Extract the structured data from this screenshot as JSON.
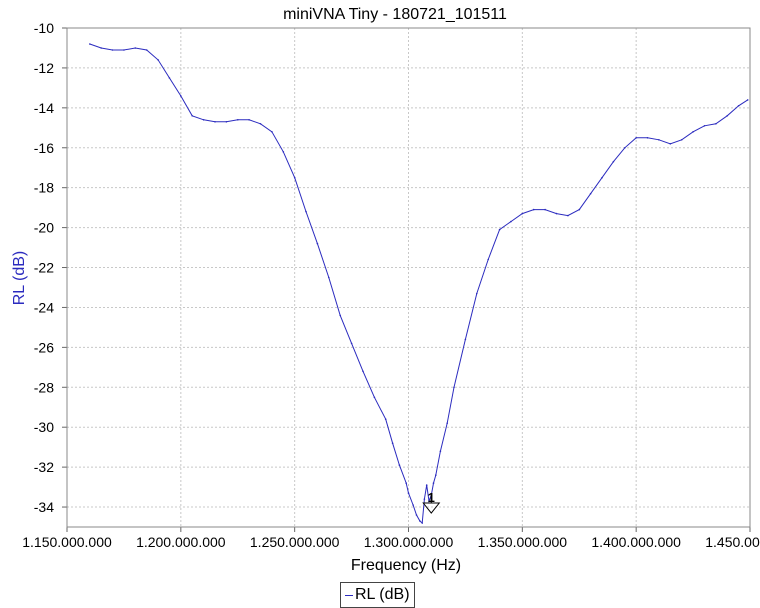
{
  "chart_data": {
    "type": "line",
    "title": "miniVNA Tiny - 180721_101511",
    "xlabel": "Frequency (Hz)",
    "ylabel": "RL (dB)",
    "xlim": [
      1150000000,
      1450000000
    ],
    "ylim": [
      -35,
      -10
    ],
    "x_ticks": [
      1150000000,
      1200000000,
      1250000000,
      1300000000,
      1350000000,
      1400000000,
      1450000000
    ],
    "x_tick_labels": [
      "1.150.000.000",
      "1.200.000.000",
      "1.250.000.000",
      "1.300.000.000",
      "1.350.000.000",
      "1.400.000.000",
      "1.450.000.000"
    ],
    "y_ticks": [
      -10,
      -12,
      -14,
      -16,
      -18,
      -20,
      -22,
      -24,
      -26,
      -28,
      -30,
      -32,
      -34
    ],
    "y_tick_labels": [
      "-10",
      "-12",
      "-14",
      "-16",
      "-18",
      "-20",
      "-22",
      "-24",
      "-26",
      "-28",
      "-30",
      "-32",
      "-34"
    ],
    "grid": true,
    "legend_position": "bottom-center",
    "series": [
      {
        "name": "RL (dB)",
        "color": "#2b2bbf",
        "x": [
          1160000000,
          1165000000,
          1170000000,
          1175000000,
          1180000000,
          1185000000,
          1190000000,
          1195000000,
          1200000000,
          1205000000,
          1210000000,
          1215000000,
          1220000000,
          1225000000,
          1230000000,
          1235000000,
          1240000000,
          1245000000,
          1250000000,
          1255000000,
          1260000000,
          1265000000,
          1270000000,
          1275000000,
          1280000000,
          1285000000,
          1290000000,
          1293000000,
          1296000000,
          1299000000,
          1300000000,
          1302000000,
          1303500000,
          1305000000,
          1306000000,
          1307000000,
          1308000000,
          1309000000,
          1310000000,
          1311000000,
          1312000000,
          1314000000,
          1317000000,
          1320000000,
          1325000000,
          1330000000,
          1335000000,
          1340000000,
          1345000000,
          1350000000,
          1355000000,
          1360000000,
          1365000000,
          1370000000,
          1375000000,
          1380000000,
          1385000000,
          1390000000,
          1395000000,
          1400000000,
          1405000000,
          1410000000,
          1415000000,
          1420000000,
          1425000000,
          1430000000,
          1435000000,
          1440000000,
          1445000000,
          1449000000
        ],
        "values": [
          -10.8,
          -11.0,
          -11.1,
          -11.1,
          -11.0,
          -11.1,
          -11.6,
          -12.5,
          -13.4,
          -14.4,
          -14.6,
          -14.7,
          -14.7,
          -14.6,
          -14.6,
          -14.8,
          -15.2,
          -16.2,
          -17.5,
          -19.2,
          -20.8,
          -22.5,
          -24.4,
          -25.8,
          -27.2,
          -28.5,
          -29.6,
          -30.8,
          -31.9,
          -32.8,
          -33.3,
          -33.9,
          -34.4,
          -34.7,
          -34.8,
          -33.6,
          -32.9,
          -33.7,
          -33.4,
          -32.8,
          -32.4,
          -31.2,
          -29.8,
          -28.0,
          -25.6,
          -23.3,
          -21.6,
          -20.1,
          -19.7,
          -19.3,
          -19.1,
          -19.1,
          -19.3,
          -19.4,
          -19.1,
          -18.3,
          -17.5,
          -16.7,
          -16.0,
          -15.5,
          -15.5,
          -15.6,
          -15.8,
          -15.6,
          -15.2,
          -14.9,
          -14.8,
          -14.4,
          -13.9,
          -13.6
        ]
      }
    ],
    "markers": [
      {
        "label": "1",
        "x": 1310000000,
        "y": -34.0
      }
    ]
  }
}
